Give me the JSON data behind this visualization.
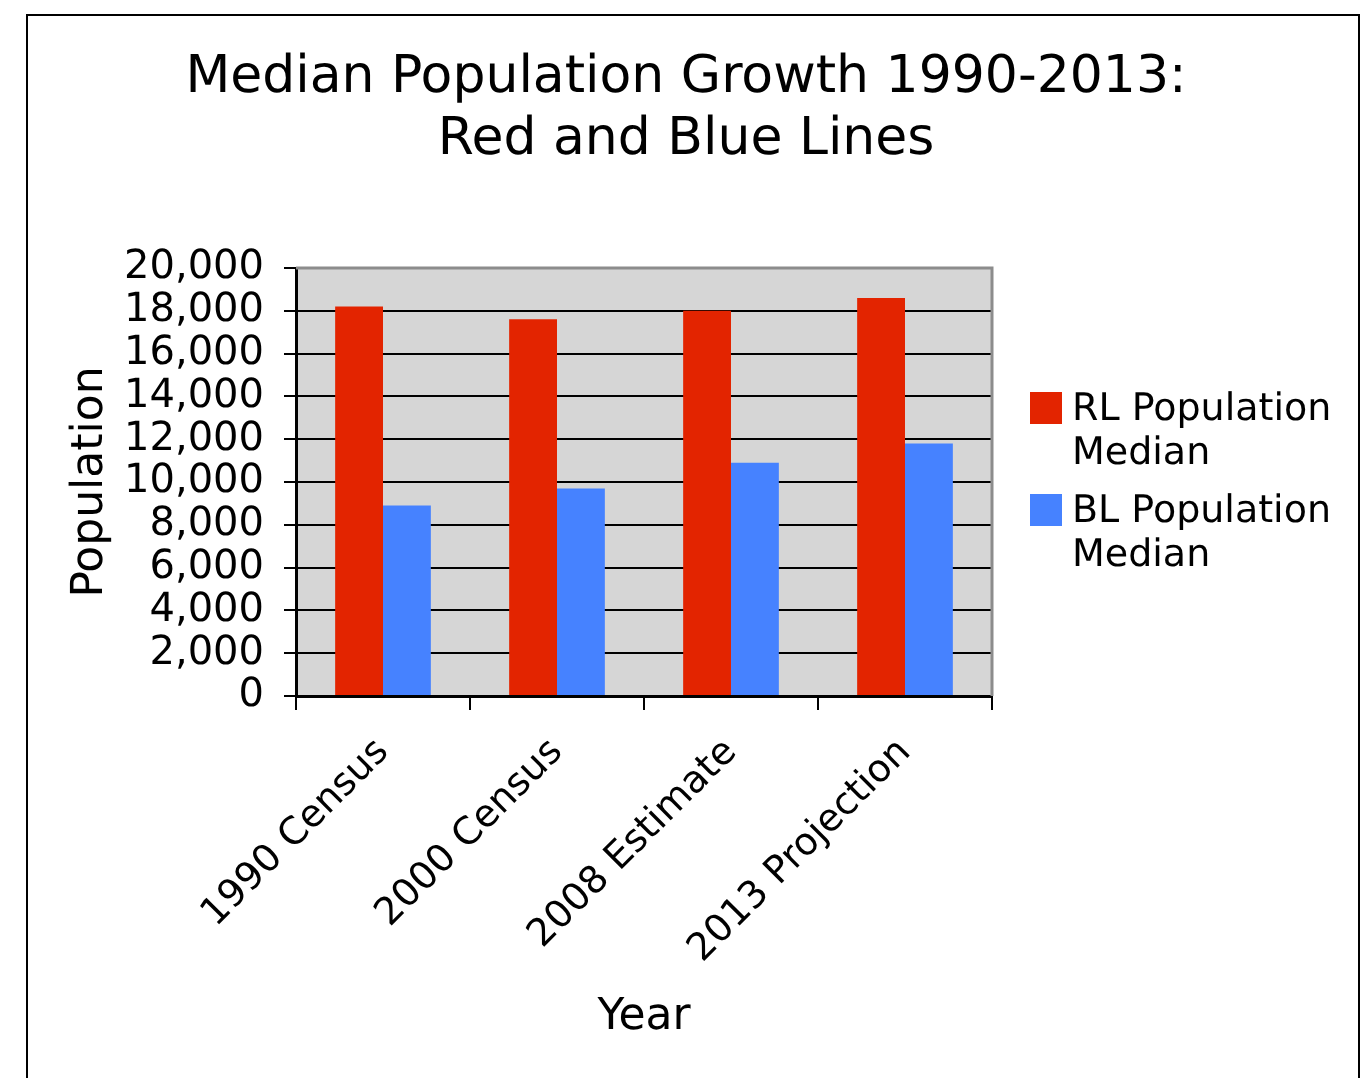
{
  "chart_data": {
    "type": "bar",
    "title": "Median Population Growth 1990-2013: Red and Blue Lines",
    "xlabel": "Year",
    "ylabel": "Population",
    "categories": [
      "1990 Census",
      "2000 Census",
      "2008 Estimate",
      "2013 Projection"
    ],
    "series": [
      {
        "name": "RL Population Median",
        "color": "#e32400",
        "values": [
          18200,
          17600,
          18000,
          18600
        ]
      },
      {
        "name": "BL Population Median",
        "color": "#4682ff",
        "values": [
          8900,
          9700,
          10900,
          11800
        ]
      }
    ],
    "ylim": [
      0,
      20000
    ],
    "yticks": [
      0,
      {
        "value": 2000,
        "label": "2,000"
      },
      {
        "value": 4000,
        "label": "4,000"
      },
      {
        "value": 6000,
        "label": "6,000"
      },
      {
        "value": 8000,
        "label": "8,000"
      },
      {
        "value": 10000,
        "label": "10,000"
      },
      {
        "value": 12000,
        "label": "12,000"
      },
      {
        "value": 14000,
        "label": "14,000"
      },
      {
        "value": 16000,
        "label": "16,000"
      },
      {
        "value": 18000,
        "label": "18,000"
      },
      {
        "value": 20000,
        "label": "20,000"
      }
    ],
    "grid": "y",
    "legend": "right"
  }
}
